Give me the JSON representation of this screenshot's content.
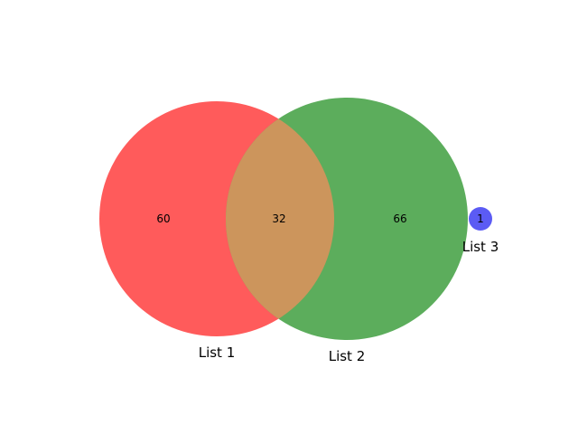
{
  "diagram": {
    "type": "venn3",
    "sets": [
      {
        "label": "List 1",
        "color": "#ff5b5b"
      },
      {
        "label": "List 2",
        "color": "#5cad5c"
      },
      {
        "label": "List 3",
        "color": "#5b5bf4"
      }
    ],
    "regions": {
      "list1_only": "60",
      "list1_list2": "32",
      "list2_only": "66",
      "list3_only": "1"
    },
    "overlap_color": "#cc955c"
  }
}
